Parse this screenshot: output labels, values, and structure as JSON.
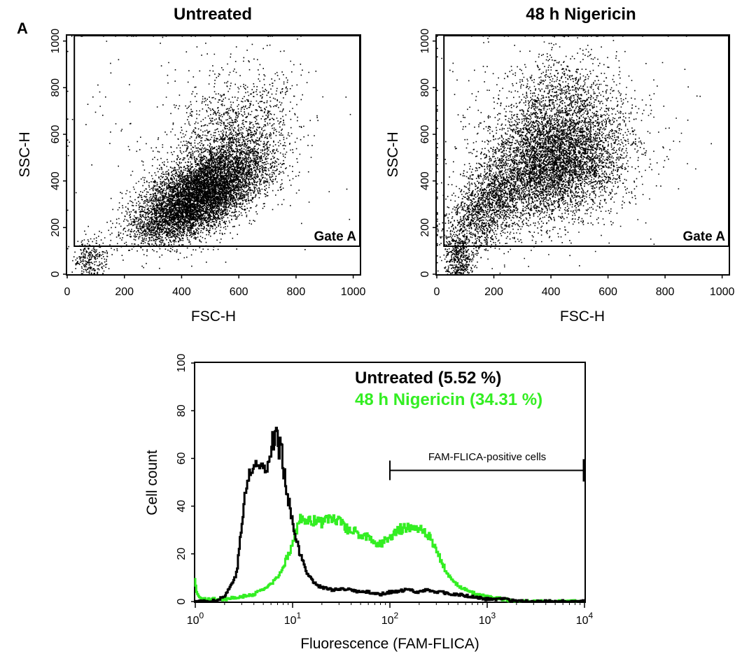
{
  "panel_letter": "A",
  "colors": {
    "untreated": "#000000",
    "nigericin": "#33ee22",
    "axis": "#000000"
  },
  "chart_data": [
    {
      "type": "scatter",
      "title": "Untreated",
      "xlabel": "FSC-H",
      "ylabel": "SSC-H",
      "xlim": [
        0,
        1023
      ],
      "ylim": [
        0,
        1023
      ],
      "xticks": [
        0,
        200,
        400,
        600,
        800,
        1000
      ],
      "yticks": [
        0,
        200,
        400,
        600,
        800,
        1000
      ],
      "gate": {
        "label": "Gate A",
        "fsc_min": 25,
        "ssc_min": 120
      },
      "clusters": [
        {
          "center": [
            480,
            360
          ],
          "spread": [
            110,
            95
          ],
          "correlation": 0.55,
          "count": 6200
        },
        {
          "center": [
            560,
            560
          ],
          "spread": [
            110,
            150
          ],
          "correlation": 0.4,
          "count": 1600
        },
        {
          "center": [
            380,
            240
          ],
          "spread": [
            90,
            60
          ],
          "correlation": 0.4,
          "count": 1200
        },
        {
          "center": [
            80,
            60
          ],
          "spread": [
            30,
            50
          ],
          "correlation": 0.0,
          "count": 300
        },
        {
          "center": [
            420,
            650
          ],
          "spread": [
            260,
            260
          ],
          "correlation": 0.0,
          "count": 200
        }
      ]
    },
    {
      "type": "scatter",
      "title": "48 h Nigericin",
      "xlabel": "FSC-H",
      "ylabel": "SSC-H",
      "xlim": [
        0,
        1023
      ],
      "ylim": [
        0,
        1023
      ],
      "xticks": [
        0,
        200,
        400,
        600,
        800,
        1000
      ],
      "yticks": [
        0,
        200,
        400,
        600,
        800,
        1000
      ],
      "gate": {
        "label": "Gate A",
        "fsc_min": 25,
        "ssc_min": 120
      },
      "clusters": [
        {
          "center": [
            410,
            470
          ],
          "spread": [
            120,
            120
          ],
          "correlation": 0.2,
          "count": 4800
        },
        {
          "center": [
            430,
            680
          ],
          "spread": [
            110,
            130
          ],
          "correlation": 0.1,
          "count": 1700
        },
        {
          "center": [
            170,
            280
          ],
          "spread": [
            70,
            100
          ],
          "correlation": 0.5,
          "count": 1500
        },
        {
          "center": [
            75,
            60
          ],
          "spread": [
            25,
            60
          ],
          "correlation": 0.0,
          "count": 500
        },
        {
          "center": [
            400,
            650
          ],
          "spread": [
            270,
            260
          ],
          "correlation": 0.0,
          "count": 250
        }
      ]
    },
    {
      "type": "histogram",
      "title": "",
      "xlabel": "Fluorescence (FAM-FLICA)",
      "ylabel": "Cell count",
      "x_scale": "log",
      "xlim": [
        1,
        10000
      ],
      "ylim": [
        0,
        100
      ],
      "xticks": [
        {
          "base": "10",
          "exp": "0"
        },
        {
          "base": "10",
          "exp": "1"
        },
        {
          "base": "10",
          "exp": "2"
        },
        {
          "base": "10",
          "exp": "3"
        },
        {
          "base": "10",
          "exp": "4"
        }
      ],
      "yticks": [
        0,
        20,
        40,
        60,
        80,
        100
      ],
      "marker": {
        "label": "FAM-FLICA-positive cells",
        "from": 100,
        "to": 10000,
        "level": 55
      },
      "series": [
        {
          "name": "Untreated (5.52 %)",
          "color": "#000000",
          "x": [
            1,
            1.5,
            2,
            2.3,
            2.7,
            3,
            3.3,
            3.6,
            4,
            4.5,
            5,
            5.5,
            6,
            6.3,
            6.6,
            7,
            7.3,
            7.6,
            8,
            8.5,
            9,
            10,
            11,
            12,
            14,
            16,
            18,
            20,
            25,
            30,
            40,
            50,
            60,
            80,
            100,
            120,
            150,
            200,
            250,
            300,
            350,
            400,
            500,
            700,
            1000,
            1500,
            2000
          ],
          "y": [
            0,
            0,
            2,
            6,
            12,
            30,
            45,
            53,
            56,
            57,
            57,
            58,
            62,
            70,
            66,
            73,
            60,
            68,
            58,
            52,
            45,
            35,
            27,
            20,
            13,
            9,
            7,
            6,
            5,
            5,
            5,
            4,
            4,
            3,
            4,
            4,
            5,
            4,
            5,
            4,
            4,
            3,
            3,
            2,
            1,
            1,
            0
          ]
        },
        {
          "name": "48 h Nigericin (34.31 %)",
          "color": "#33ee22",
          "x": [
            1,
            1.05,
            1.2,
            1.5,
            2,
            3,
            4,
            5,
            6,
            7,
            8,
            9,
            10,
            11,
            12,
            14,
            16,
            18,
            20,
            25,
            30,
            35,
            40,
            50,
            60,
            70,
            80,
            100,
            120,
            150,
            180,
            200,
            250,
            300,
            350,
            400,
            500,
            600,
            800,
            1000,
            1500,
            2000,
            5000,
            10000
          ],
          "y": [
            10,
            3,
            1,
            1,
            1,
            2,
            3,
            5,
            7,
            10,
            14,
            19,
            24,
            30,
            34,
            34,
            33,
            35,
            33,
            35,
            34,
            31,
            30,
            28,
            27,
            25,
            24,
            27,
            30,
            31,
            32,
            31,
            28,
            22,
            16,
            11,
            7,
            5,
            3,
            2,
            1,
            0,
            0,
            0
          ]
        }
      ]
    }
  ]
}
